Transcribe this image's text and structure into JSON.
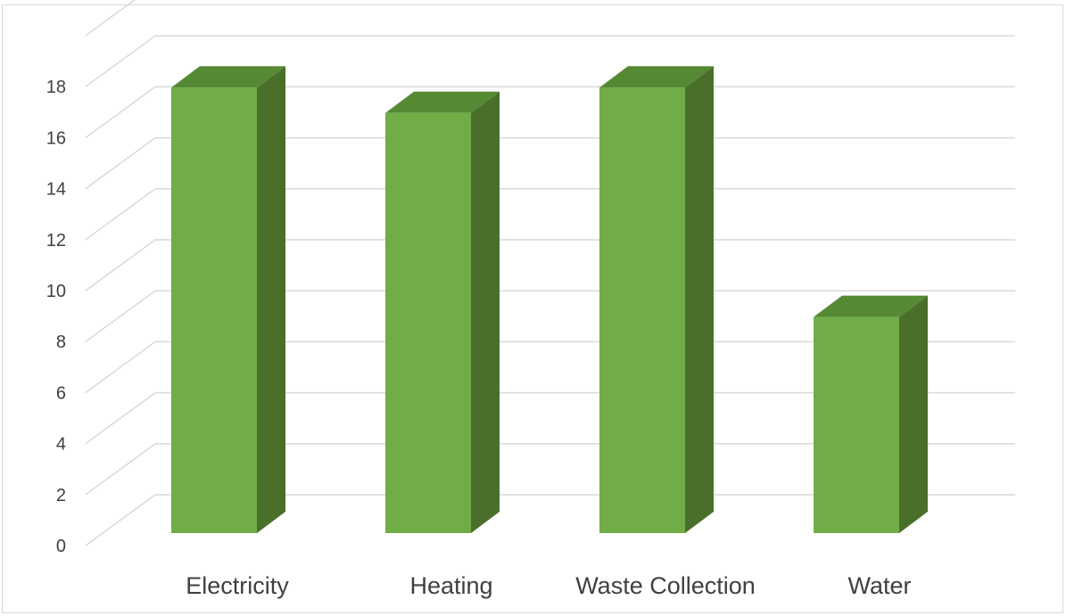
{
  "chart_data": {
    "type": "bar",
    "style": "3d-column",
    "categories": [
      "Electricity",
      "Heating",
      "Waste Collection",
      "Water"
    ],
    "values": [
      18,
      17,
      18,
      9
    ],
    "ylim": [
      0,
      19.5
    ],
    "yticks": [
      0,
      2,
      4,
      6,
      8,
      10,
      12,
      14,
      16,
      18
    ],
    "title": "",
    "xlabel": "",
    "ylabel": "",
    "grid": true,
    "legend": "none",
    "colors": {
      "bar_front": "#70ad47",
      "bar_side": "#4a6f2b",
      "bar_top": "#558934",
      "gridline": "#d9d9d9",
      "axis_text": "#404040"
    }
  }
}
